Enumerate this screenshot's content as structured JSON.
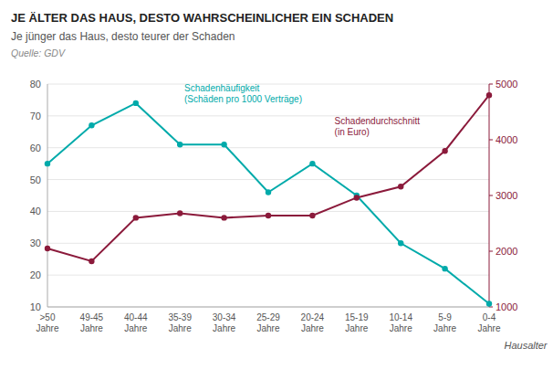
{
  "chart_data": {
    "type": "line",
    "title": "JE ÄLTER DAS HAUS, DESTO WAHRSCHEINLICHER EIN SCHADEN",
    "subtitle": "Je jünger das Haus, desto teurer der Schaden",
    "source": "Quelle: GDV",
    "x_label": "Hausalter",
    "categories": [
      ">50\nJahre",
      "49-45\nJahre",
      "40-44\nJahre",
      "35-39\nJahre",
      "30-34\nJahre",
      "25-29\nJahre",
      "20-24\nJahre",
      "15-19\nJahre",
      "10-14\nJahre",
      "5-9\nJahre",
      "0-4\nJahre"
    ],
    "series": [
      {
        "name": "Schadenhäufigkeit\n(Schäden pro 1000 Verträge)",
        "color": "#00AAAA",
        "marker": "circle",
        "values": [
          55,
          67,
          74,
          61,
          61,
          46,
          55,
          45,
          30,
          22,
          11
        ]
      },
      {
        "name": "Schadendurchschnitt\n(in Euro)",
        "color": "#8B1A3B",
        "marker": "circle",
        "axis": "y2",
        "values": [
          2050,
          1820,
          2600,
          2680,
          2600,
          2640,
          2640,
          2960,
          3160,
          3800,
          4800
        ]
      }
    ],
    "ylim": [
      10,
      80
    ],
    "yticks": [
      10,
      20,
      30,
      40,
      50,
      60,
      70,
      80
    ],
    "y2lim": [
      1000,
      5000
    ],
    "y2ticks": [
      1000,
      2000,
      3000,
      4000,
      5000
    ],
    "grid": true
  }
}
